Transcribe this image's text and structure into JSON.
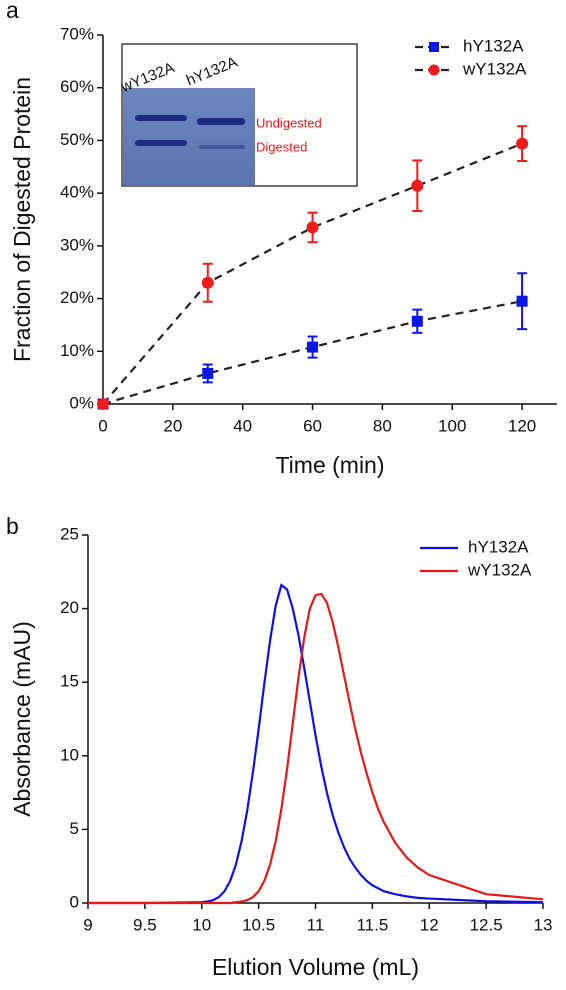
{
  "chart_data": [
    {
      "type": "line",
      "panel_label": "a",
      "xlabel": "Time (min)",
      "ylabel": "Fraction of Digested Protein",
      "x": [
        0,
        30,
        60,
        90,
        120
      ],
      "xlim": [
        0,
        130
      ],
      "xticks": [
        0,
        20,
        40,
        60,
        80,
        100,
        120
      ],
      "ylim": [
        0,
        70
      ],
      "yticks": [
        {
          "value": 0,
          "label": "0%"
        },
        {
          "value": 10,
          "label": "10%"
        },
        {
          "value": 20,
          "label": "20%"
        },
        {
          "value": 30,
          "label": "30%"
        },
        {
          "value": 40,
          "label": "40%"
        },
        {
          "value": 50,
          "label": "50%"
        },
        {
          "value": 60,
          "label": "60%"
        },
        {
          "value": 70,
          "label": "70%"
        }
      ],
      "line_style": "dashed",
      "line_color": "#222222",
      "legend": "upper right",
      "inset_labels": [
        "wY132A",
        "hY132A",
        "Undigested",
        "Digested"
      ],
      "series": [
        {
          "name": "hY132A",
          "color": "#0b16e8",
          "marker": "square",
          "values": [
            0,
            5.8,
            10.8,
            15.7,
            19.5
          ],
          "errors": [
            0,
            1.7,
            2.0,
            2.2,
            5.3
          ]
        },
        {
          "name": "wY132A",
          "color": "#ee1c1c",
          "marker": "circle",
          "values": [
            0,
            23.0,
            33.5,
            41.4,
            49.4
          ],
          "errors": [
            0,
            3.6,
            2.8,
            4.8,
            3.3
          ]
        }
      ]
    },
    {
      "type": "line",
      "panel_label": "b",
      "xlabel": "Elution Volume (mL)",
      "ylabel": "Absorbance (mAU)",
      "x": [
        9,
        9.5,
        10.0,
        10.05,
        10.1,
        10.15,
        10.2,
        10.25,
        10.3,
        10.35,
        10.4,
        10.45,
        10.5,
        10.55,
        10.6,
        10.65,
        10.7,
        10.75,
        10.8,
        10.85,
        10.9,
        10.95,
        11.0,
        11.05,
        11.1,
        11.15,
        11.2,
        11.25,
        11.3,
        11.35,
        11.4,
        11.45,
        11.5,
        11.55,
        11.6,
        11.7,
        11.8,
        11.9,
        12.0,
        12.5,
        13
      ],
      "xlim": [
        9,
        13
      ],
      "xticks": [
        9,
        9.5,
        10,
        10.5,
        11,
        11.5,
        12,
        12.5,
        13
      ],
      "ylim": [
        0,
        25
      ],
      "yticks": [
        0,
        5,
        10,
        15,
        20,
        25
      ],
      "line_style": "solid",
      "legend": "upper right",
      "series": [
        {
          "name": "hY132A",
          "color": "#1010e6",
          "values": [
            0,
            0,
            0.05,
            0.1,
            0.2,
            0.4,
            0.8,
            1.5,
            2.6,
            4.2,
            6.3,
            8.9,
            11.8,
            14.9,
            17.8,
            20.2,
            21.6,
            21.3,
            20.0,
            18.2,
            16.0,
            13.7,
            11.4,
            9.3,
            7.5,
            6.0,
            4.8,
            3.8,
            3.0,
            2.4,
            1.9,
            1.5,
            1.2,
            1.0,
            0.8,
            0.6,
            0.45,
            0.35,
            0.3,
            0.12,
            0.05
          ]
        },
        {
          "name": "wY132A",
          "color": "#e81818",
          "values": [
            0,
            0,
            0,
            0,
            0,
            0,
            0,
            0,
            0.05,
            0.1,
            0.2,
            0.4,
            0.8,
            1.5,
            2.6,
            4.2,
            6.4,
            9.1,
            12.2,
            15.3,
            18.0,
            20.0,
            20.9,
            21.0,
            20.4,
            19.1,
            17.4,
            15.5,
            13.6,
            11.8,
            10.2,
            8.8,
            7.5,
            6.4,
            5.5,
            4.1,
            3.1,
            2.4,
            1.9,
            0.6,
            0.25
          ]
        }
      ]
    }
  ]
}
